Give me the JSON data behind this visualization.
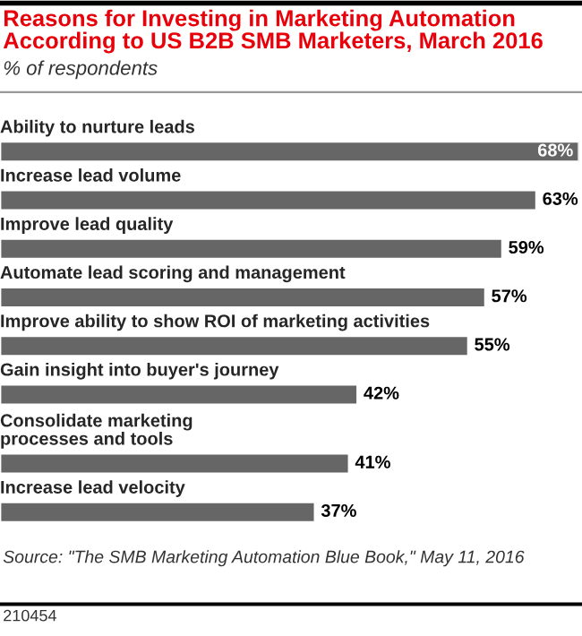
{
  "chart_data": {
    "type": "bar",
    "orientation": "horizontal",
    "title": "Reasons for Investing in Marketing Automation According to US B2B SMB Marketers, March 2016",
    "subtitle": "% of respondents",
    "categories": [
      "Ability to nurture leads",
      "Increase lead volume",
      "Improve lead quality",
      "Automate lead scoring and management",
      "Improve ability to show ROI of marketing activities",
      "Gain insight into buyer's journey",
      "Consolidate marketing\nprocesses and tools",
      "Increase lead velocity"
    ],
    "values": [
      68,
      63,
      59,
      57,
      55,
      42,
      41,
      37
    ],
    "value_labels": [
      "68%",
      "63%",
      "59%",
      "57%",
      "55%",
      "42%",
      "41%",
      "37%"
    ],
    "color": "#666666",
    "annotations": [
      "Source: \"The SMB Marketing Automation Blue Book,\" May 11, 2016",
      "210454"
    ]
  }
}
